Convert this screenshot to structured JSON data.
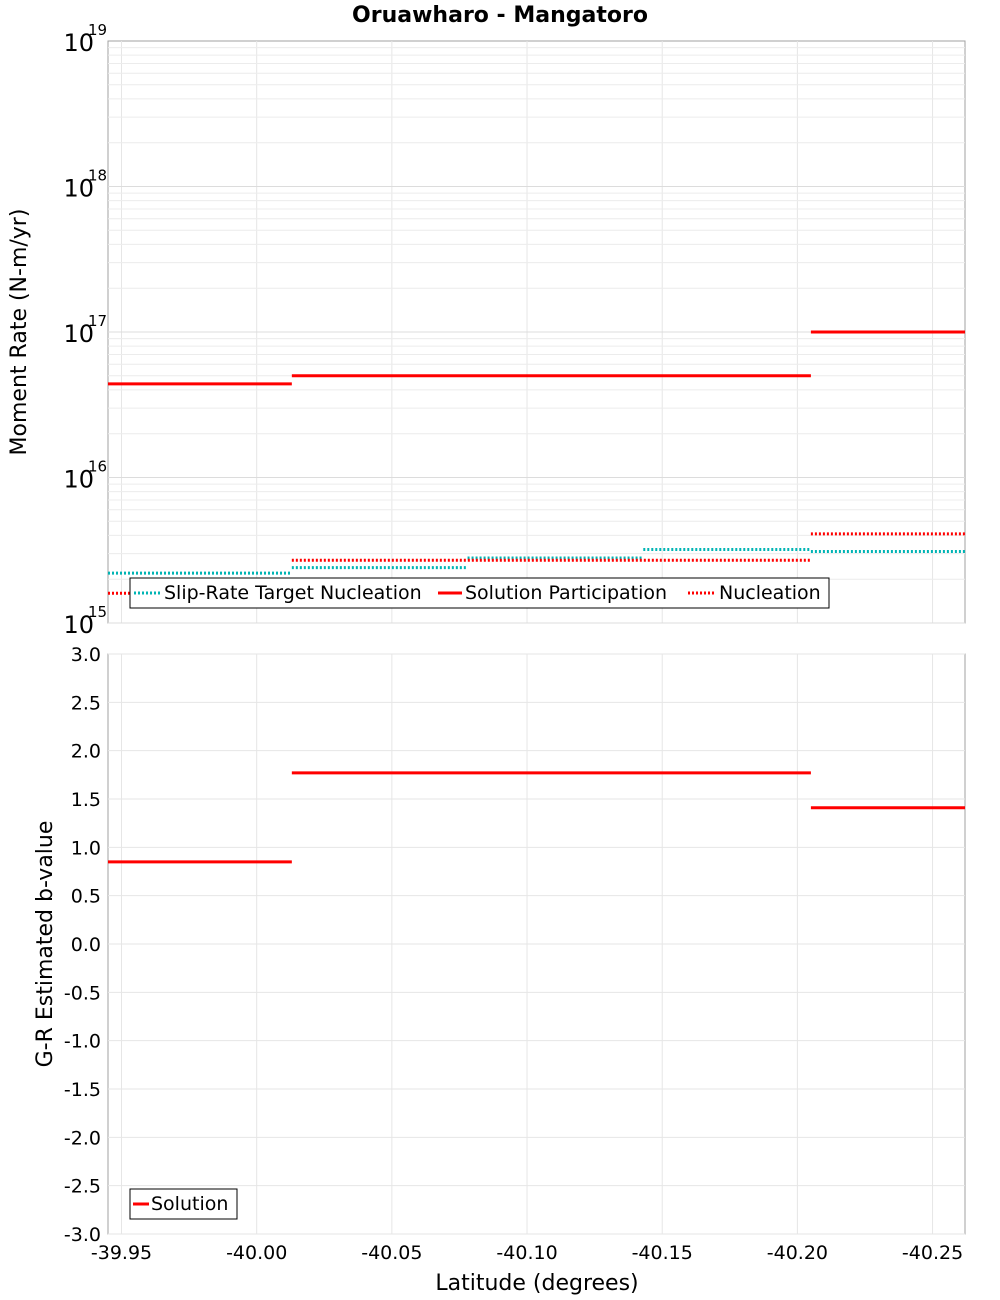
{
  "chart_data": [
    {
      "type": "line",
      "title": "Oruawharo - Mangatoro",
      "ylabel": "Moment Rate (N-m/yr)",
      "yscale": "log",
      "ylim_exp": [
        15,
        19
      ],
      "y_ticks": [
        {
          "base": "10",
          "exp": "15",
          "exp_value": 15
        },
        {
          "base": "10",
          "exp": "16",
          "exp_value": 16
        },
        {
          "base": "10",
          "exp": "17",
          "exp_value": 17
        },
        {
          "base": "10",
          "exp": "18",
          "exp_value": 18
        },
        {
          "base": "10",
          "exp": "19",
          "exp_value": 19
        }
      ],
      "xlim": [
        -39.945,
        -40.262
      ],
      "series": [
        {
          "name": "Slip-Rate Target Nucleation",
          "color": "#00b4b4",
          "style": "dotted",
          "segments": [
            {
              "x0": -39.945,
              "x1": -40.013,
              "y": 2200000000000000.0
            },
            {
              "x0": -40.013,
              "x1": -40.078,
              "y": 2400000000000000.0
            },
            {
              "x0": -40.078,
              "x1": -40.143,
              "y": 2800000000000000.0
            },
            {
              "x0": -40.143,
              "x1": -40.205,
              "y": 3200000000000000.0
            },
            {
              "x0": -40.205,
              "x1": -40.262,
              "y": 3100000000000000.0
            }
          ]
        },
        {
          "name": "Solution Participation",
          "color": "#ff0000",
          "style": "solid",
          "segments": [
            {
              "x0": -39.945,
              "x1": -40.013,
              "y": 4.4e+16
            },
            {
              "x0": -40.013,
              "x1": -40.205,
              "y": 5e+16
            },
            {
              "x0": -40.205,
              "x1": -40.262,
              "y": 1e+17
            }
          ]
        },
        {
          "name": "Nucleation",
          "color": "#ff0000",
          "style": "dotted",
          "segments": [
            {
              "x0": -39.945,
              "x1": -40.013,
              "y": 1600000000000000.0
            },
            {
              "x0": -40.013,
              "x1": -40.205,
              "y": 2700000000000000.0
            },
            {
              "x0": -40.205,
              "x1": -40.262,
              "y": 4100000000000000.0
            }
          ]
        }
      ],
      "legend": [
        "Slip-Rate Target Nucleation",
        "Solution Participation",
        "Nucleation"
      ]
    },
    {
      "type": "line",
      "ylabel": "G-R Estimated b-value",
      "xlabel": "Latitude (degrees)",
      "ylim": [
        -3.0,
        3.0
      ],
      "y_ticks": [
        "-3.0",
        "-2.5",
        "-2.0",
        "-1.5",
        "-1.0",
        "-0.5",
        "0.0",
        "0.5",
        "1.0",
        "1.5",
        "2.0",
        "2.5",
        "3.0"
      ],
      "x_ticks": [
        "-39.95",
        "-40.00",
        "-40.05",
        "-40.10",
        "-40.15",
        "-40.20",
        "-40.25"
      ],
      "xlim": [
        -39.945,
        -40.262
      ],
      "series": [
        {
          "name": "Solution",
          "color": "#ff0000",
          "style": "solid",
          "segments": [
            {
              "x0": -39.945,
              "x1": -40.013,
              "y": 0.85
            },
            {
              "x0": -40.013,
              "x1": -40.205,
              "y": 1.77
            },
            {
              "x0": -40.205,
              "x1": -40.262,
              "y": 1.41
            }
          ]
        }
      ],
      "legend": [
        "Solution"
      ]
    }
  ]
}
